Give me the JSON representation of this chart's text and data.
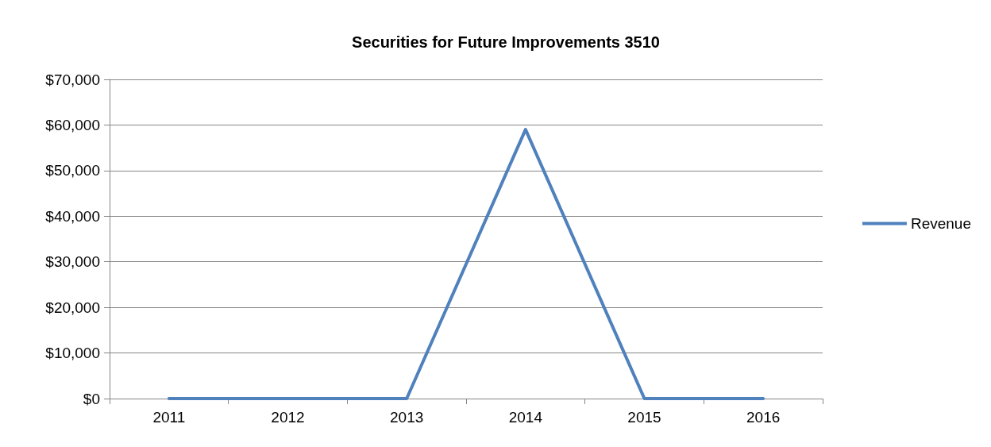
{
  "chart_data": {
    "type": "line",
    "title": "Securities for Future Improvements 3510",
    "categories": [
      "2011",
      "2012",
      "2013",
      "2014",
      "2015",
      "2016"
    ],
    "series": [
      {
        "name": "Revenue",
        "color": "#4f81bd",
        "values": [
          0,
          0,
          0,
          59000,
          0,
          0
        ]
      }
    ],
    "ylim": [
      0,
      70000
    ],
    "yticks": [
      {
        "value": 0,
        "label": "$0"
      },
      {
        "value": 10000,
        "label": "$10,000"
      },
      {
        "value": 20000,
        "label": "$20,000"
      },
      {
        "value": 30000,
        "label": "$30,000"
      },
      {
        "value": 40000,
        "label": "$40,000"
      },
      {
        "value": 50000,
        "label": "$50,000"
      },
      {
        "value": 60000,
        "label": "$60,000"
      },
      {
        "value": 70000,
        "label": "$70,000"
      }
    ],
    "grid": "y",
    "legend": "right",
    "marker": "none",
    "line_style": "solid"
  }
}
